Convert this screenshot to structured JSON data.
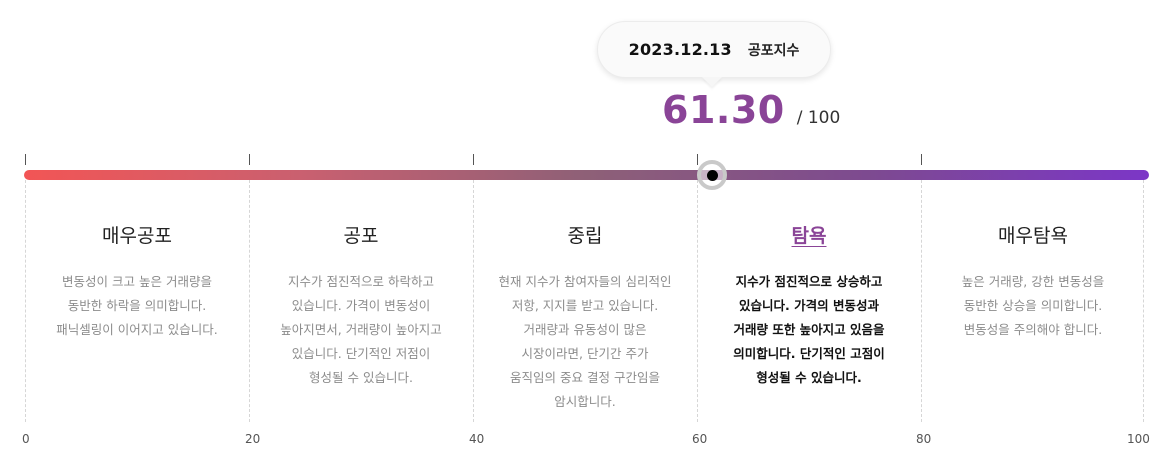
{
  "tooltip": {
    "date": "2023.12.13",
    "label": "공포지수"
  },
  "score": {
    "value": "61.30",
    "max": "/ 100"
  },
  "gauge": {
    "value": 61.3,
    "range": [
      0,
      100
    ],
    "colors": {
      "start": "#f25555",
      "end": "#7c36c7",
      "accent": "#8a4497"
    }
  },
  "zones": [
    {
      "title": "매우공포",
      "description": "변동성이 크고 높은 거래량을 동반한 하락을 의미합니다. 패닉셀링이 이어지고 있습니다.",
      "active": false
    },
    {
      "title": "공포",
      "description": "지수가 점진적으로 하락하고 있습니다. 가격이 변동성이 높아지면서, 거래량이 높아지고 있습니다. 단기적인 저점이 형성될 수 있습니다.",
      "active": false
    },
    {
      "title": "중립",
      "description": "현재 지수가 참여자들의 심리적인 저항, 지지를 받고 있습니다. 거래량과 유동성이 많은 시장이라면, 단기간 주가 움직임의 중요 결정 구간임을 암시합니다.",
      "active": false
    },
    {
      "title": "탐욕",
      "description": "지수가 점진적으로 상승하고 있습니다. 가격의 변동성과 거래량 또한 높아지고 있음을 의미합니다. 단기적인 고점이 형성될 수 있습니다.",
      "active": true
    },
    {
      "title": "매우탐욕",
      "description": "높은 거래량, 강한 변동성을 동반한 상승을 의미합니다. 변동성을 주의해야 합니다.",
      "active": false
    }
  ],
  "axis": {
    "labels": [
      "0",
      "20",
      "40",
      "60",
      "80",
      "100"
    ]
  }
}
